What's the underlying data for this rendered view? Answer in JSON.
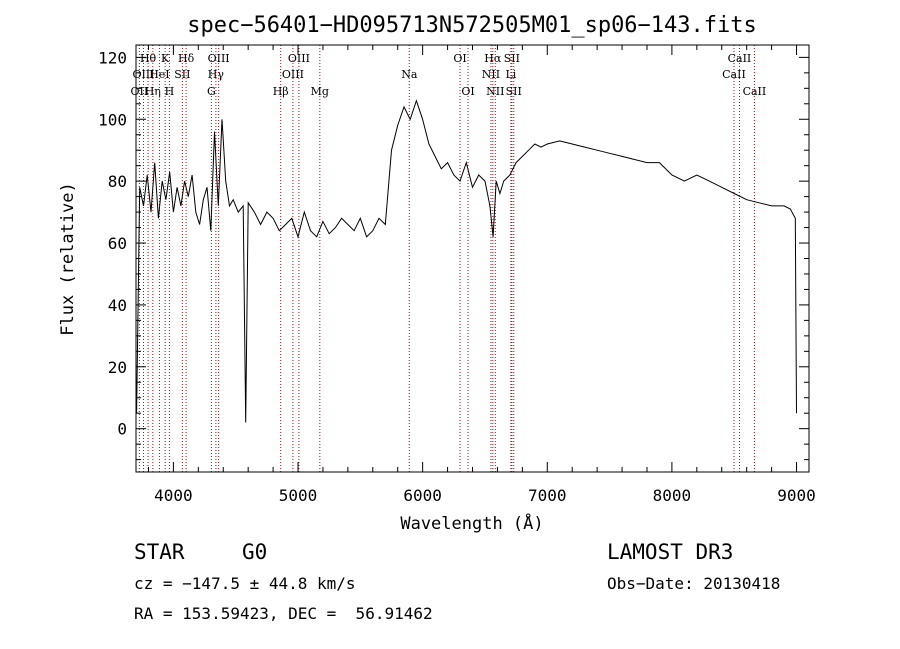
{
  "chart_data": {
    "type": "line",
    "title": "spec−56401−HD095713N572505M01_sp06−143.fits",
    "xlabel": "Wavelength (Å)",
    "ylabel": "Flux (relative)",
    "xlim": [
      3700,
      9100
    ],
    "ylim": [
      -14,
      124
    ],
    "x_ticks": [
      4000,
      5000,
      6000,
      7000,
      8000,
      9000
    ],
    "y_ticks": [
      0,
      20,
      40,
      60,
      80,
      100,
      120
    ],
    "grid": false,
    "series_color": "#000000",
    "line_marker_color": "#a01010",
    "series": [
      {
        "x": [
          3705,
          3730,
          3760,
          3790,
          3820,
          3850,
          3880,
          3910,
          3940,
          3970,
          4000,
          4030,
          4060,
          4090,
          4120,
          4150,
          4180,
          4210,
          4240,
          4270,
          4300,
          4330,
          4360,
          4390,
          4420,
          4450,
          4480,
          4520,
          4560,
          4580,
          4600,
          4650,
          4700,
          4750,
          4800,
          4850,
          4900,
          4950,
          5000,
          5050,
          5100,
          5150,
          5200,
          5250,
          5300,
          5350,
          5400,
          5450,
          5500,
          5550,
          5600,
          5650,
          5700,
          5750,
          5800,
          5850,
          5900,
          5950,
          6000,
          6050,
          6100,
          6150,
          6200,
          6250,
          6300,
          6350,
          6400,
          6450,
          6500,
          6540,
          6565,
          6590,
          6620,
          6650,
          6700,
          6750,
          6800,
          6850,
          6900,
          6950,
          7000,
          7100,
          7200,
          7300,
          7400,
          7500,
          7600,
          7700,
          7800,
          7900,
          8000,
          8100,
          8200,
          8300,
          8400,
          8500,
          8600,
          8700,
          8800,
          8900,
          8950,
          8990,
          9000
        ],
        "y": [
          5,
          78,
          72,
          82,
          70,
          86,
          68,
          80,
          74,
          83,
          70,
          78,
          72,
          80,
          75,
          82,
          70,
          66,
          74,
          78,
          64,
          96,
          72,
          100,
          80,
          72,
          74,
          70,
          72,
          2,
          73,
          70,
          66,
          70,
          68,
          64,
          66,
          68,
          62,
          70,
          64,
          62,
          67,
          63,
          65,
          68,
          66,
          64,
          68,
          62,
          64,
          68,
          66,
          90,
          98,
          104,
          100,
          106,
          100,
          92,
          88,
          84,
          86,
          82,
          80,
          86,
          78,
          82,
          80,
          72,
          62,
          80,
          76,
          80,
          82,
          86,
          88,
          90,
          92,
          91,
          92,
          93,
          92,
          91,
          90,
          89,
          88,
          87,
          86,
          86,
          82,
          80,
          82,
          80,
          78,
          76,
          74,
          73,
          72,
          72,
          71,
          68,
          5
        ]
      }
    ],
    "line_ids": [
      {
        "name": "OII",
        "x": 3727,
        "row": 3
      },
      {
        "name": "Hθ",
        "x": 3797,
        "row": 1
      },
      {
        "name": "OIII",
        "x": 3760,
        "row": 2
      },
      {
        "name": "Hη",
        "x": 3835,
        "row": 3
      },
      {
        "name": "HeI",
        "x": 3888,
        "row": 2
      },
      {
        "name": "K",
        "x": 3934,
        "row": 1
      },
      {
        "name": "H",
        "x": 3968,
        "row": 3
      },
      {
        "name": "SII",
        "x": 4072,
        "row": 2
      },
      {
        "name": "Hδ",
        "x": 4102,
        "row": 1
      },
      {
        "name": "G",
        "x": 4305,
        "row": 3
      },
      {
        "name": "Hγ",
        "x": 4341,
        "row": 2
      },
      {
        "name": "OIII",
        "x": 4363,
        "row": 1
      },
      {
        "name": "Hβ",
        "x": 4861,
        "row": 3
      },
      {
        "name": "OIII",
        "x": 4959,
        "row": 2
      },
      {
        "name": "OIII",
        "x": 5007,
        "row": 1
      },
      {
        "name": "Mg",
        "x": 5175,
        "row": 3
      },
      {
        "name": "Na",
        "x": 5893,
        "row": 2
      },
      {
        "name": "OI",
        "x": 6300,
        "row": 1
      },
      {
        "name": "OI",
        "x": 6364,
        "row": 3
      },
      {
        "name": "NII",
        "x": 6548,
        "row": 2
      },
      {
        "name": "Hα",
        "x": 6563,
        "row": 1
      },
      {
        "name": "NII",
        "x": 6583,
        "row": 3
      },
      {
        "name": "Li",
        "x": 6708,
        "row": 2
      },
      {
        "name": "SII",
        "x": 6716,
        "row": 1
      },
      {
        "name": "SII",
        "x": 6731,
        "row": 3
      },
      {
        "name": "CaII",
        "x": 8498,
        "row": 2
      },
      {
        "name": "CaII",
        "x": 8542,
        "row": 1
      },
      {
        "name": "CaII",
        "x": 8662,
        "row": 3
      }
    ]
  },
  "info": {
    "class": "STAR",
    "subclass": "G0",
    "survey": "LAMOST DR3",
    "cz": "cz = −147.5 ± 44.8 km/s",
    "obs_date": "Obs−Date: 20130418",
    "radec": "RA = 153.59423, DEC =  56.91462"
  }
}
